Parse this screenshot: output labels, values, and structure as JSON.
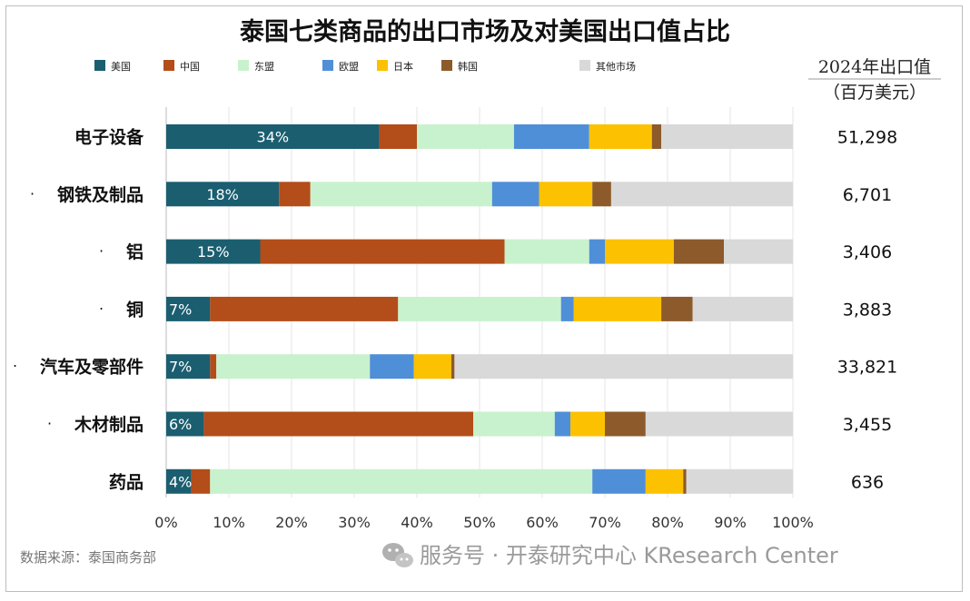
{
  "chart_data": {
    "type": "bar",
    "orientation": "horizontal",
    "stacked": true,
    "title": "泰国七类商品的出口市场及对美国出口值占比",
    "categories": [
      "电子设备",
      "钢铁及制品",
      "铝",
      "铜",
      "汽车及零部件",
      "木材制品",
      "药品"
    ],
    "category_bullets": [
      false,
      true,
      true,
      true,
      true,
      true,
      false
    ],
    "series": [
      {
        "name": "美国",
        "color": "#1a5e70",
        "values": [
          34,
          18,
          15,
          7,
          7,
          6,
          4
        ],
        "labels": [
          "34%",
          "18%",
          "15%",
          "7%",
          "7%",
          "6%",
          "4%"
        ]
      },
      {
        "name": "中国",
        "color": "#b34d19",
        "values": [
          6,
          5,
          39,
          30,
          1,
          43,
          3
        ]
      },
      {
        "name": "东盟",
        "color": "#c8f2cd",
        "values": [
          15.5,
          29,
          13.5,
          26,
          24.5,
          13,
          61
        ]
      },
      {
        "name": "欧盟",
        "color": "#4e8fd8",
        "values": [
          12,
          7.5,
          2.5,
          2,
          7,
          2.5,
          8.5
        ]
      },
      {
        "name": "日本",
        "color": "#fcc100",
        "values": [
          10,
          8.5,
          11,
          14,
          6,
          5.5,
          6
        ]
      },
      {
        "name": "韩国",
        "color": "#8c5a2b",
        "values": [
          1.5,
          3,
          8,
          5,
          0.5,
          6.5,
          0.5
        ]
      },
      {
        "name": "其他市场",
        "color": "#d9d9d9",
        "values": [
          21,
          29,
          11,
          16,
          54,
          23.5,
          17
        ]
      }
    ],
    "xlim": [
      0,
      100
    ],
    "xticks": [
      "0%",
      "10%",
      "20%",
      "30%",
      "40%",
      "50%",
      "60%",
      "70%",
      "80%",
      "90%",
      "100%"
    ],
    "side_header": [
      "2024年出口值",
      "（百万美元）"
    ],
    "export_values": [
      "51,298",
      "6,701",
      "3,406",
      "3,883",
      "33,821",
      "3,455",
      "636"
    ],
    "legend_position": "top"
  },
  "source": "数据来源：泰国商务部",
  "watermark": "服务号 · 开泰研究中心 KResearch Center",
  "bullet_char": "·"
}
